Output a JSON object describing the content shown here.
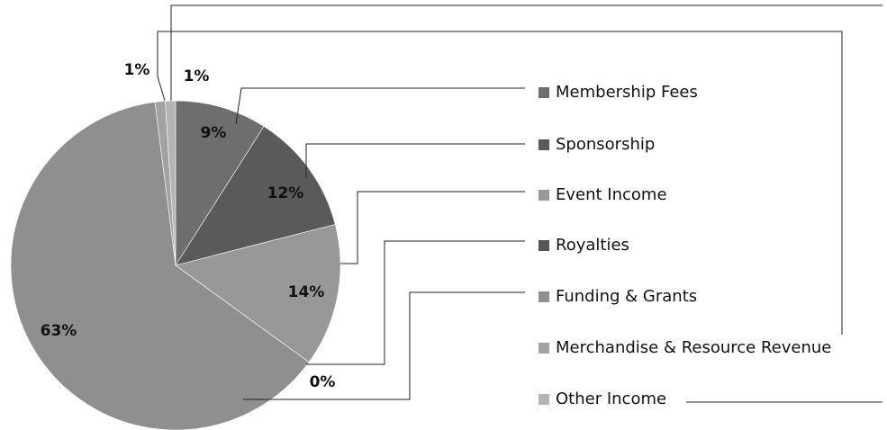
{
  "chart_data": {
    "type": "pie",
    "categories": [
      "Membership Fees",
      "Sponsorship",
      "Event Income",
      "Royalties",
      "Funding & Grants",
      "Merchandise & Resource Revenue",
      "Other Income"
    ],
    "values": [
      9,
      12,
      14,
      0,
      63,
      1,
      1
    ],
    "value_labels": [
      "9%",
      "12%",
      "14%",
      "0%",
      "63%",
      "1%",
      "1%"
    ],
    "colors": [
      "#6e6e6e",
      "#5a5a5a",
      "#989898",
      "#555555",
      "#8f8f8f",
      "#a2a2a2",
      "#b4b4b4"
    ],
    "legend": "right"
  }
}
